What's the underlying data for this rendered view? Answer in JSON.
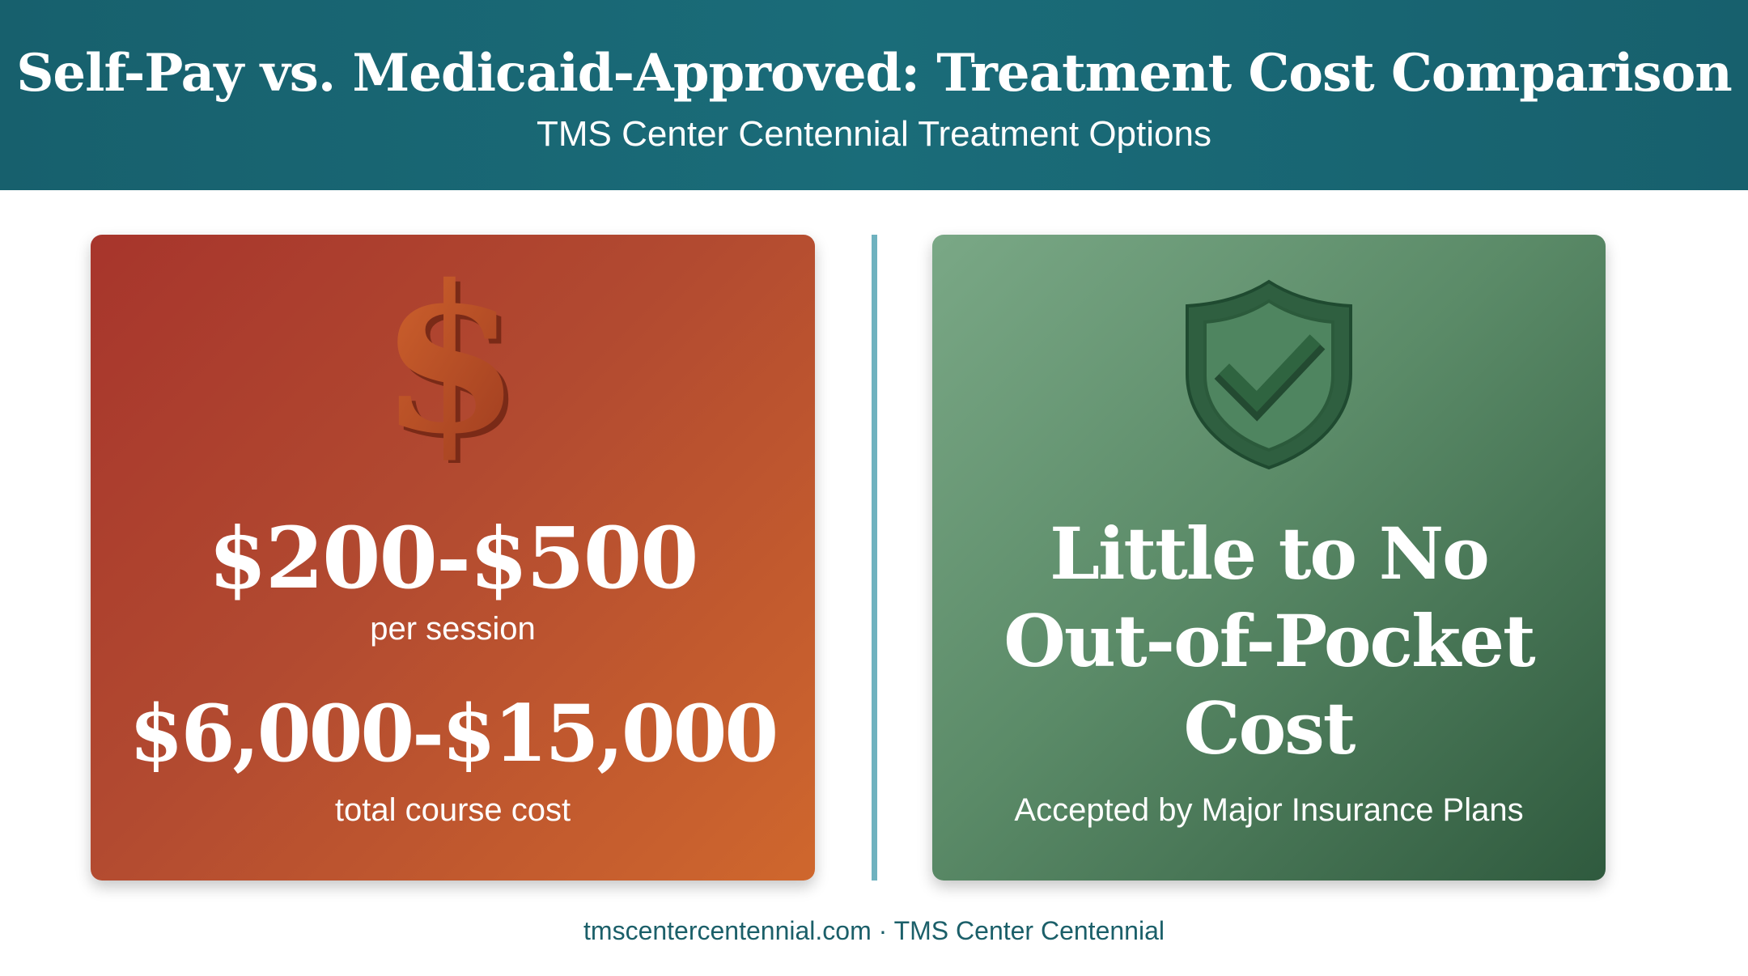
{
  "header": {
    "title": "Self-Pay vs. Medicaid-Approved: Treatment Cost Comparison",
    "subtitle": "TMS Center Centennial Treatment Options"
  },
  "left_card": {
    "icon": "dollar-sign-icon",
    "price_per_session": "$200-$500",
    "per_session_label": "per session",
    "price_total": "$6,000-$15,000",
    "total_label": "total course cost",
    "color": "#b84a2e"
  },
  "right_card": {
    "icon": "shield-check-icon",
    "headline_line1": "Little to No",
    "headline_line2": "Out-of-Pocket",
    "headline_line3": "Cost",
    "subtext": "Accepted by Major Insurance Plans",
    "color": "#5b8b68"
  },
  "divider_color": "#6fb2bf",
  "header_color": "#1a6672",
  "footer": {
    "text": "tmscentercentennial.com · TMS Center Centennial"
  }
}
